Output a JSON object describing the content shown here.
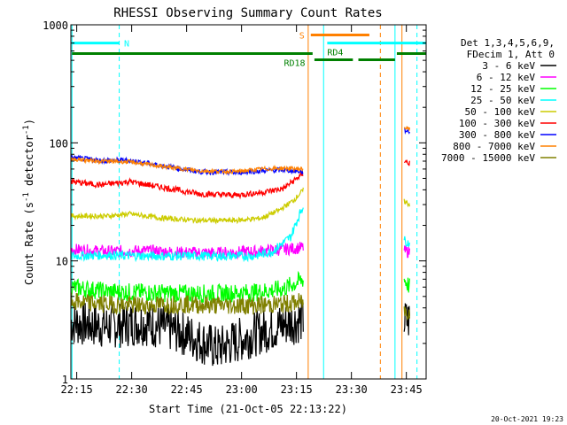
{
  "chart_data": {
    "type": "line",
    "title": "RHESSI Observing Summary Count Rates",
    "xlabel": "Start Time (21-Oct-05 22:13:22)",
    "ylabel_main": "Count Rate (s",
    "ylabel_sup1": "-1",
    "ylabel_mid": " detector",
    "ylabel_sup2": "-1",
    "ylabel_end": ")",
    "yscale": "log",
    "ylim": [
      1,
      1000
    ],
    "xlim_minutes": [
      0,
      97
    ],
    "x_ticks": [
      {
        "label": "22:15",
        "min": 1.6
      },
      {
        "label": "22:30",
        "min": 16.6
      },
      {
        "label": "22:45",
        "min": 31.6
      },
      {
        "label": "23:00",
        "min": 46.6
      },
      {
        "label": "23:15",
        "min": 61.6
      },
      {
        "label": "23:30",
        "min": 76.6
      },
      {
        "label": "23:45",
        "min": 91.6
      }
    ],
    "y_ticks": [
      {
        "label": "1",
        "v": 1
      },
      {
        "label": "10",
        "v": 10
      },
      {
        "label": "100",
        "v": 100
      },
      {
        "label": "1000",
        "v": 1000
      }
    ],
    "legend_header": [
      "Det 1,3,4,5,6,9,",
      "FDecim 1, Att 0"
    ],
    "legend_placement": "right",
    "series": [
      {
        "name": "3 - 6 keV",
        "color": "#000000",
        "points": [
          [
            0,
            3
          ],
          [
            10,
            2.8
          ],
          [
            20,
            3
          ],
          [
            30,
            2.5
          ],
          [
            40,
            1.8
          ],
          [
            50,
            2.4
          ],
          [
            60,
            3
          ],
          [
            63.5,
            3.2
          ],
          [
            91,
            3
          ],
          [
            92.5,
            3.2
          ]
        ]
      },
      {
        "name": "6 - 12 keV",
        "color": "#ff00ff",
        "points": [
          [
            0,
            12.5
          ],
          [
            10,
            12
          ],
          [
            20,
            12.2
          ],
          [
            30,
            11.8
          ],
          [
            40,
            11.7
          ],
          [
            50,
            12
          ],
          [
            58,
            12.5
          ],
          [
            63.5,
            13
          ],
          [
            91,
            12
          ],
          [
            92.5,
            12
          ]
        ]
      },
      {
        "name": "12 - 25 keV",
        "color": "#00ff00",
        "points": [
          [
            0,
            6
          ],
          [
            10,
            5.5
          ],
          [
            20,
            5.4
          ],
          [
            30,
            5.3
          ],
          [
            40,
            5.3
          ],
          [
            50,
            5.4
          ],
          [
            58,
            5.8
          ],
          [
            63.5,
            7
          ],
          [
            91,
            7
          ],
          [
            92.5,
            6
          ]
        ]
      },
      {
        "name": "25 - 50 keV",
        "color": "#00ffff",
        "points": [
          [
            0,
            11
          ],
          [
            10,
            11.2
          ],
          [
            20,
            11
          ],
          [
            30,
            11
          ],
          [
            40,
            11
          ],
          [
            50,
            11
          ],
          [
            55,
            12
          ],
          [
            60,
            16
          ],
          [
            63.5,
            30
          ],
          [
            91,
            15
          ],
          [
            92.5,
            14
          ]
        ]
      },
      {
        "name": "50 - 100 keV",
        "color": "#cccc00",
        "points": [
          [
            0,
            24
          ],
          [
            10,
            24
          ],
          [
            16,
            25
          ],
          [
            25,
            23
          ],
          [
            35,
            22
          ],
          [
            45,
            22
          ],
          [
            52,
            23
          ],
          [
            57,
            27
          ],
          [
            61,
            33
          ],
          [
            63.5,
            40
          ],
          [
            91,
            32
          ],
          [
            92.5,
            30
          ]
        ]
      },
      {
        "name": "100 - 300 keV",
        "color": "#ff0000",
        "points": [
          [
            0,
            47
          ],
          [
            8,
            44
          ],
          [
            16,
            47
          ],
          [
            25,
            42
          ],
          [
            35,
            37
          ],
          [
            45,
            36
          ],
          [
            52,
            38
          ],
          [
            58,
            41
          ],
          [
            63.5,
            55
          ],
          [
            91,
            70
          ],
          [
            92.5,
            67
          ]
        ]
      },
      {
        "name": "300 - 800 keV",
        "color": "#0000ff",
        "points": [
          [
            0,
            75
          ],
          [
            8,
            71
          ],
          [
            16,
            71
          ],
          [
            25,
            64
          ],
          [
            35,
            57
          ],
          [
            45,
            56
          ],
          [
            52,
            58
          ],
          [
            58,
            59
          ],
          [
            63.5,
            57
          ],
          [
            91,
            128
          ],
          [
            92.5,
            125
          ]
        ]
      },
      {
        "name": "800 - 7000 keV",
        "color": "#ff8000",
        "points": [
          [
            0,
            73
          ],
          [
            8,
            70
          ],
          [
            16,
            69
          ],
          [
            25,
            63
          ],
          [
            35,
            58
          ],
          [
            45,
            57
          ],
          [
            52,
            60
          ],
          [
            58,
            61
          ],
          [
            63.5,
            60
          ],
          [
            91,
            135
          ],
          [
            92.5,
            130
          ]
        ]
      },
      {
        "name": "7000 - 15000 keV",
        "color": "#808000",
        "points": [
          [
            0,
            4.5
          ],
          [
            10,
            4.3
          ],
          [
            20,
            4.2
          ],
          [
            30,
            4.3
          ],
          [
            40,
            4.2
          ],
          [
            50,
            4.2
          ],
          [
            58,
            4.3
          ],
          [
            63.5,
            4.5
          ],
          [
            91,
            3.7
          ],
          [
            92.5,
            3.8
          ]
        ]
      }
    ],
    "annotations": [
      {
        "label": "N",
        "color": "#00ffff"
      },
      {
        "label": "S",
        "color": "#ff8000"
      },
      {
        "label": "RD18",
        "color": "#008000"
      },
      {
        "label": "RD4",
        "color": "#008000"
      }
    ]
  },
  "footer": {
    "timestamp": "20-Oct-2021 19:23"
  }
}
